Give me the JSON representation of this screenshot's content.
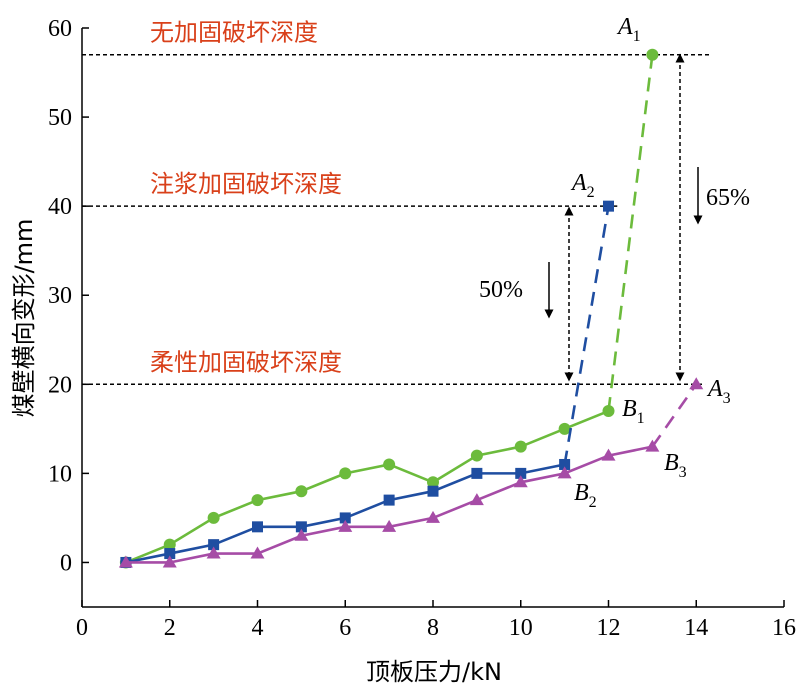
{
  "chart_data": {
    "type": "line",
    "xlabel": "顶板压力/kN",
    "ylabel": "煤壁横向变形/mm",
    "xlim": [
      0,
      16
    ],
    "ylim": [
      -5,
      60
    ],
    "xticks": [
      0,
      2,
      4,
      6,
      8,
      10,
      12,
      14,
      16
    ],
    "yticks": [
      0,
      10,
      20,
      30,
      40,
      50,
      60
    ],
    "grid": false,
    "series": [
      {
        "key": "green",
        "color": "#6cbb3c",
        "marker": "circle",
        "solid": {
          "x": [
            1,
            2,
            3,
            4,
            5,
            6,
            7,
            8,
            9,
            10,
            11,
            12
          ],
          "y": [
            0,
            2,
            5,
            7,
            8,
            10,
            11,
            9,
            12,
            13,
            15,
            17
          ]
        },
        "dashed": {
          "x": [
            12,
            13
          ],
          "y": [
            17,
            57
          ]
        },
        "end_marker": {
          "x": 13,
          "y": 57
        }
      },
      {
        "key": "blue",
        "color": "#1f4ea1",
        "marker": "square",
        "solid": {
          "x": [
            1,
            2,
            3,
            4,
            5,
            6,
            7,
            8,
            9,
            10,
            11
          ],
          "y": [
            0,
            1,
            2,
            4,
            4,
            5,
            7,
            8,
            10,
            10,
            11
          ]
        },
        "dashed": {
          "x": [
            11,
            12
          ],
          "y": [
            11,
            40
          ]
        },
        "end_marker": {
          "x": 12,
          "y": 40
        }
      },
      {
        "key": "purple",
        "color": "#a64ca6",
        "marker": "triangle",
        "solid": {
          "x": [
            1,
            2,
            3,
            4,
            5,
            6,
            7,
            8,
            9,
            10,
            11,
            12,
            13
          ],
          "y": [
            0,
            0,
            1,
            1,
            3,
            4,
            4,
            5,
            7,
            9,
            10,
            12,
            13
          ]
        },
        "dashed": {
          "x": [
            13,
            14
          ],
          "y": [
            13,
            20
          ]
        },
        "end_marker": {
          "x": 14,
          "y": 20
        }
      }
    ],
    "reference_lines": [
      {
        "y": 57,
        "label": "无加固破坏深度",
        "x_end": 14.3
      },
      {
        "y": 40,
        "label": "注浆加固破坏深度",
        "x_end": 12.2
      },
      {
        "y": 20,
        "label": "柔性加固破坏深度",
        "x_end": 14.2
      }
    ],
    "reference_label_color": "#d9401a",
    "point_labels": [
      {
        "base": "A",
        "sub": "1"
      },
      {
        "base": "A",
        "sub": "2"
      },
      {
        "base": "A",
        "sub": "3"
      },
      {
        "base": "B",
        "sub": "1"
      },
      {
        "base": "B",
        "sub": "2"
      },
      {
        "base": "B",
        "sub": "3"
      }
    ],
    "annotations": [
      {
        "text": "50%"
      },
      {
        "text": "65%"
      }
    ]
  }
}
